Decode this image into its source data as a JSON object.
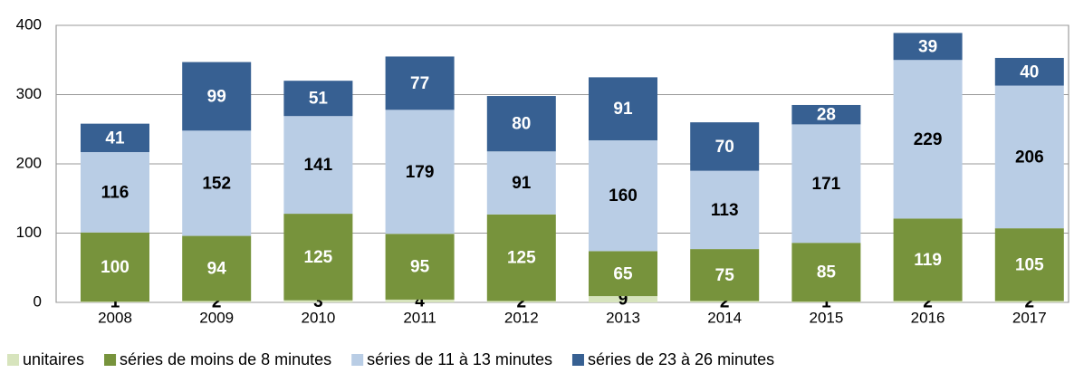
{
  "chart_data": {
    "type": "stacked_bar",
    "categories": [
      "2008",
      "2009",
      "2010",
      "2011",
      "2012",
      "2013",
      "2014",
      "2015",
      "2016",
      "2017"
    ],
    "series": [
      {
        "name": "unitaires",
        "color": "#d7e4bd",
        "label_color": "#000000",
        "values": [
          1,
          2,
          3,
          4,
          2,
          9,
          2,
          1,
          2,
          2
        ]
      },
      {
        "name": "séries de moins de 8 minutes",
        "color": "#77933c",
        "label_color": "#ffffff",
        "values": [
          100,
          94,
          125,
          95,
          125,
          65,
          75,
          85,
          119,
          105
        ]
      },
      {
        "name": "séries de 11 à 13 minutes",
        "color": "#b9cde5",
        "label_color": "#000000",
        "values": [
          116,
          152,
          141,
          179,
          91,
          160,
          113,
          171,
          229,
          206
        ]
      },
      {
        "name": "séries de 23 à 26 minutes",
        "color": "#376092",
        "label_color": "#ffffff",
        "values": [
          41,
          99,
          51,
          77,
          80,
          91,
          70,
          28,
          39,
          40
        ]
      }
    ],
    "ylim": [
      0,
      400
    ],
    "yticks": [
      0,
      100,
      200,
      300,
      400
    ],
    "grid": true,
    "legend": "bottom"
  }
}
